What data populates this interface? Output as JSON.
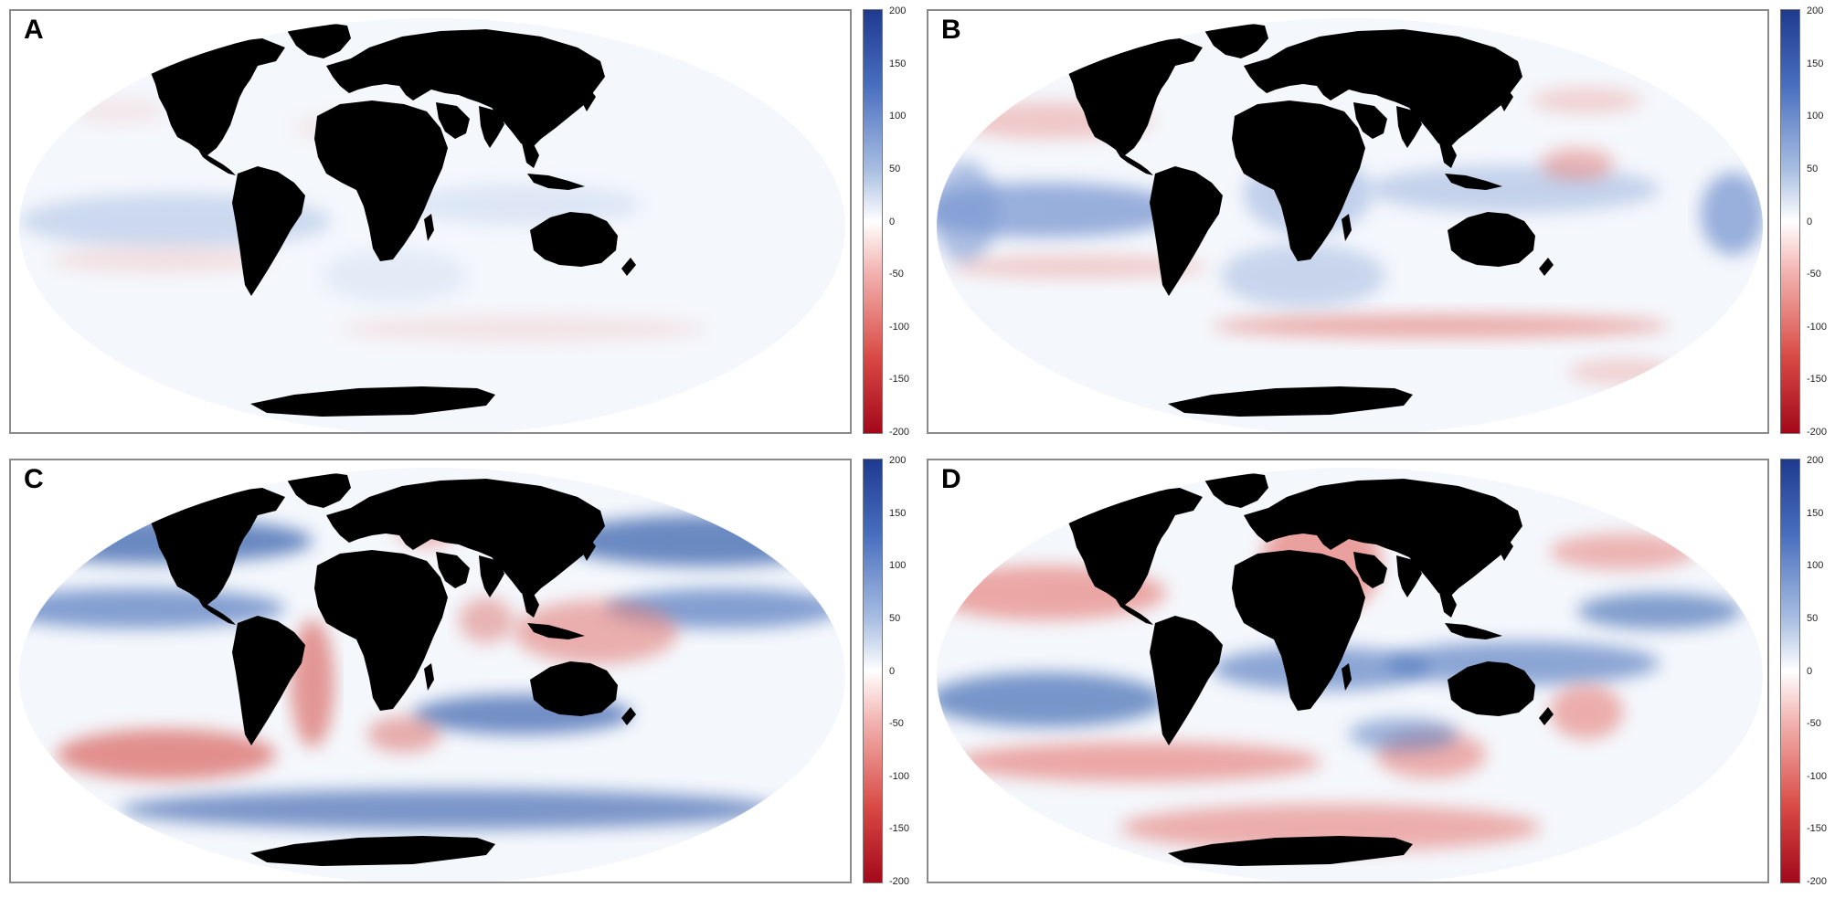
{
  "figure": {
    "panels": [
      {
        "label": "A",
        "variant": "a"
      },
      {
        "label": "B",
        "variant": "b"
      },
      {
        "label": "C",
        "variant": "c"
      },
      {
        "label": "D",
        "variant": "d"
      }
    ],
    "colorbar": {
      "ticks": [
        "200",
        "150",
        "100",
        "50",
        "0",
        "-50",
        "-100",
        "-150",
        "-200"
      ],
      "range": [
        -200,
        200
      ],
      "colors": {
        "max": "#1e3a8f",
        "mid": "#ffffff",
        "min": "#a3081a",
        "land": "#000000"
      }
    }
  }
}
